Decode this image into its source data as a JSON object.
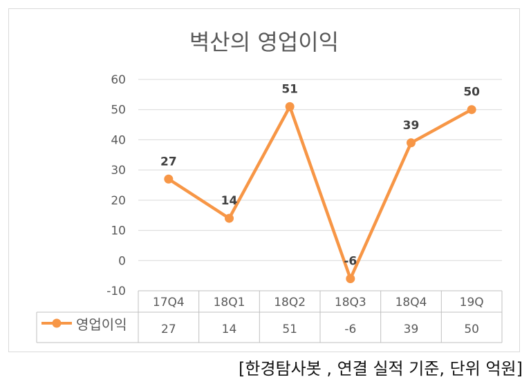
{
  "chart_data": {
    "type": "line",
    "title": "벽산의 영업이익",
    "categories": [
      "17Q4",
      "18Q1",
      "18Q2",
      "18Q3",
      "18Q4",
      "19Q"
    ],
    "series": [
      {
        "name": "영업이익",
        "values": [
          27,
          14,
          51,
          -6,
          39,
          50
        ],
        "color": "#f79646"
      }
    ],
    "data_labels": [
      "27",
      "14",
      "51",
      "-6",
      "39",
      "50"
    ],
    "table_values": [
      "27",
      "14",
      "51",
      "-6",
      "39",
      "50"
    ],
    "yticks": [
      "60",
      "50",
      "40",
      "30",
      "20",
      "10",
      "0",
      "-10"
    ],
    "ylim": [
      -10,
      60
    ],
    "grid": true,
    "legend": "data-table"
  },
  "source_note": "[한경탐사봇 , 연결 실적 기준, 단위 억원]"
}
